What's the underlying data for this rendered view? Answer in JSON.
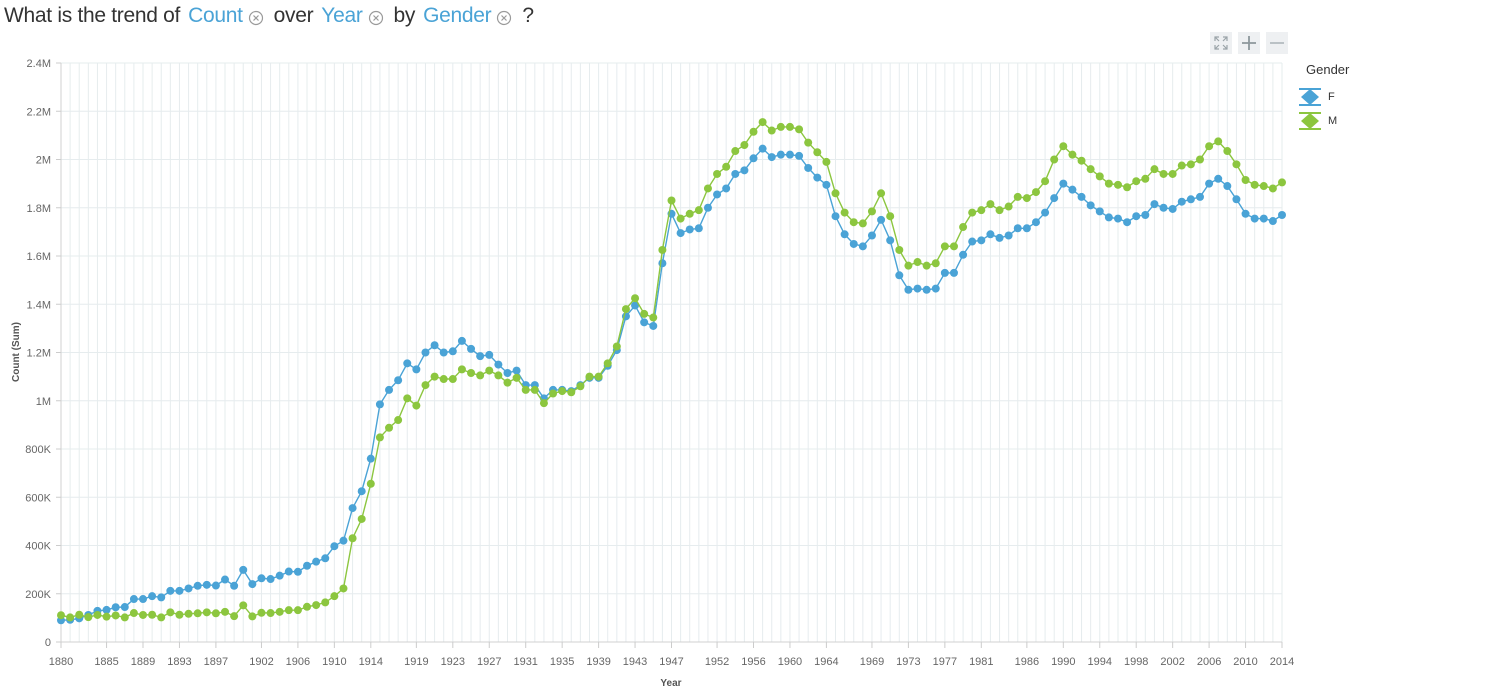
{
  "question": {
    "prefix": "What is the trend of",
    "measure": "Count",
    "over": "over",
    "dimension": "Year",
    "by": "by",
    "group": "Gender",
    "suffix": "?"
  },
  "toolbar": {
    "icons": [
      "expand-icon",
      "zoom-in-icon",
      "zoom-out-icon"
    ]
  },
  "legend": {
    "title": "Gender",
    "items": [
      {
        "label": "F",
        "color": "#4aa3d6"
      },
      {
        "label": "M",
        "color": "#8cc63f"
      }
    ]
  },
  "chart_data": {
    "type": "line",
    "xlabel": "Year",
    "ylabel": "Count (Sum)",
    "xlim": [
      1880,
      2014
    ],
    "ylim": [
      0,
      2400000
    ],
    "grid": true,
    "legend_position": "right",
    "x_ticks": [
      1880,
      1885,
      1889,
      1893,
      1897,
      1902,
      1906,
      1910,
      1914,
      1919,
      1923,
      1927,
      1931,
      1935,
      1939,
      1943,
      1947,
      1952,
      1956,
      1960,
      1964,
      1969,
      1973,
      1977,
      1981,
      1986,
      1990,
      1994,
      1998,
      2002,
      2006,
      2010,
      2014
    ],
    "y_ticks": [
      {
        "value": 0,
        "label": "0"
      },
      {
        "value": 200000,
        "label": "200K"
      },
      {
        "value": 400000,
        "label": "400K"
      },
      {
        "value": 600000,
        "label": "600K"
      },
      {
        "value": 800000,
        "label": "800K"
      },
      {
        "value": 1000000,
        "label": "1M"
      },
      {
        "value": 1200000,
        "label": "1.2M"
      },
      {
        "value": 1400000,
        "label": "1.4M"
      },
      {
        "value": 1600000,
        "label": "1.6M"
      },
      {
        "value": 1800000,
        "label": "1.8M"
      },
      {
        "value": 2000000,
        "label": "2M"
      },
      {
        "value": 2200000,
        "label": "2.2M"
      },
      {
        "value": 2400000,
        "label": "2.4M"
      }
    ],
    "x_start": 1880,
    "series": [
      {
        "name": "F",
        "color": "#4aa3d6",
        "values": [
          90000,
          92000,
          98000,
          112000,
          129000,
          133000,
          144000,
          145000,
          178000,
          178000,
          190000,
          185000,
          212000,
          212000,
          222000,
          233000,
          237000,
          234000,
          259000,
          233000,
          299000,
          240000,
          264000,
          261000,
          275000,
          292000,
          291000,
          316000,
          333000,
          347000,
          397000,
          420000,
          555000,
          625000,
          760000,
          985000,
          1045000,
          1085000,
          1155000,
          1130000,
          1200000,
          1230000,
          1200000,
          1205000,
          1248000,
          1215000,
          1185000,
          1190000,
          1150000,
          1115000,
          1125000,
          1065000,
          1065000,
          1010000,
          1045000,
          1045000,
          1040000,
          1065000,
          1095000,
          1095000,
          1145000,
          1210000,
          1350000,
          1395000,
          1325000,
          1310000,
          1570000,
          1775000,
          1695000,
          1710000,
          1715000,
          1800000,
          1855000,
          1880000,
          1940000,
          1955000,
          2005000,
          2045000,
          2010000,
          2020000,
          2020000,
          2015000,
          1965000,
          1925000,
          1895000,
          1765000,
          1690000,
          1650000,
          1640000,
          1685000,
          1750000,
          1665000,
          1520000,
          1460000,
          1465000,
          1460000,
          1465000,
          1530000,
          1530000,
          1605000,
          1660000,
          1665000,
          1690000,
          1675000,
          1685000,
          1715000,
          1715000,
          1740000,
          1780000,
          1840000,
          1900000,
          1875000,
          1845000,
          1810000,
          1785000,
          1760000,
          1755000,
          1740000,
          1765000,
          1770000,
          1815000,
          1800000,
          1795000,
          1825000,
          1835000,
          1845000,
          1900000,
          1920000,
          1890000,
          1835000,
          1775000,
          1755000,
          1755000,
          1745000,
          1770000
        ]
      },
      {
        "name": "M",
        "color": "#8cc63f",
        "values": [
          111000,
          102000,
          113000,
          103000,
          112000,
          105000,
          110000,
          102000,
          120000,
          112000,
          113000,
          102000,
          123000,
          113000,
          117000,
          119000,
          123000,
          119000,
          125000,
          107000,
          152000,
          106000,
          121000,
          120000,
          125000,
          132000,
          132000,
          146000,
          153000,
          164000,
          190000,
          222000,
          430000,
          510000,
          656000,
          848000,
          888000,
          920000,
          1010000,
          980000,
          1065000,
          1100000,
          1090000,
          1090000,
          1130000,
          1115000,
          1105000,
          1125000,
          1105000,
          1075000,
          1095000,
          1045000,
          1045000,
          990000,
          1030000,
          1040000,
          1035000,
          1060000,
          1100000,
          1100000,
          1155000,
          1225000,
          1380000,
          1425000,
          1360000,
          1345000,
          1625000,
          1830000,
          1755000,
          1775000,
          1790000,
          1880000,
          1940000,
          1970000,
          2035000,
          2060000,
          2115000,
          2155000,
          2120000,
          2135000,
          2135000,
          2125000,
          2070000,
          2030000,
          1990000,
          1860000,
          1780000,
          1740000,
          1735000,
          1785000,
          1860000,
          1765000,
          1625000,
          1560000,
          1575000,
          1560000,
          1570000,
          1640000,
          1640000,
          1720000,
          1780000,
          1790000,
          1815000,
          1790000,
          1805000,
          1845000,
          1840000,
          1865000,
          1910000,
          2000000,
          2055000,
          2020000,
          1995000,
          1960000,
          1930000,
          1900000,
          1895000,
          1885000,
          1910000,
          1920000,
          1960000,
          1940000,
          1940000,
          1975000,
          1980000,
          2000000,
          2055000,
          2075000,
          2035000,
          1980000,
          1915000,
          1895000,
          1890000,
          1880000,
          1905000
        ]
      }
    ]
  }
}
